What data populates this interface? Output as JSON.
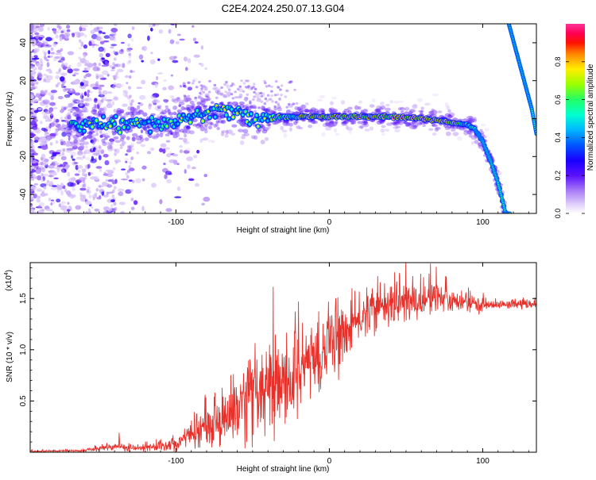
{
  "figure_title": "C2E4.2024.250.07.13.G04",
  "colors": {
    "snr_line": "#e8302a",
    "colormap": [
      "#ffffff",
      "#cfb6f2",
      "#7a28ff",
      "#2b00ff",
      "#0066ff",
      "#00ccff",
      "#00ffb0",
      "#33ff33",
      "#ccff00",
      "#ffdd00",
      "#ff6600",
      "#ff0000",
      "#ff3399"
    ]
  },
  "chart_data": [
    {
      "type": "heatmap",
      "title": "C2E4.2024.250.07.13.G04",
      "xlabel": "Height of straight line (km)",
      "ylabel": "Frequency (Hz)",
      "xlim": [
        -195,
        135
      ],
      "ylim": [
        -50,
        50
      ],
      "xticks": [
        -100,
        0,
        100
      ],
      "xtick_labels": [
        "-100",
        "0",
        "100"
      ],
      "yticks": [
        -40,
        -20,
        0,
        20,
        40
      ],
      "ytick_labels": [
        "-40",
        "-20",
        "0",
        "20",
        "40"
      ],
      "colorbar": {
        "label": "Normalized spectral amplitude",
        "range": [
          0,
          1
        ],
        "ticks": [
          0,
          0.2,
          0.4,
          0.6,
          0.8
        ],
        "tick_labels": [
          "0.0",
          "0.2",
          "0.4",
          "0.6",
          "0.8"
        ]
      },
      "ridge": {
        "x": [
          -165,
          -150,
          -130,
          -110,
          -100,
          -90,
          -80,
          -70,
          -60,
          -50,
          -45,
          -40,
          -35,
          -30,
          -20,
          0,
          20,
          40,
          60,
          80,
          90,
          95,
          100,
          105,
          110,
          115
        ],
        "y": [
          -3,
          -3,
          -3,
          -3,
          -2,
          1,
          3,
          4,
          3,
          0,
          -1,
          0,
          1,
          1,
          1,
          1,
          1,
          1,
          0,
          -2,
          -3,
          -6,
          -12,
          -22,
          -34,
          -50
        ]
      },
      "secondary_ridge": {
        "x": [
          117,
          122,
          127,
          132,
          135
        ],
        "y": [
          50,
          35,
          20,
          5,
          -8
        ]
      },
      "noise_region": {
        "x_range": [
          -195,
          -100
        ],
        "y_range": [
          -50,
          50
        ]
      }
    },
    {
      "type": "line",
      "xlabel": "Height of straight line (km)",
      "ylabel": "SNR (10 * v/v)",
      "y_multiplier_label": "(x10",
      "y_multiplier_exponent": "4",
      "xlim": [
        -195,
        135
      ],
      "ylim": [
        0,
        18500
      ],
      "xticks": [
        -100,
        0,
        100
      ],
      "xtick_labels": [
        "-100",
        "0",
        "100"
      ],
      "yticks": [
        5000,
        10000,
        15000
      ],
      "ytick_labels": [
        "0.5",
        "1.0",
        "1.5"
      ],
      "series": [
        {
          "name": "SNR",
          "envelope": {
            "x": [
              -195,
              -160,
              -140,
              -130,
              -120,
              -100,
              -90,
              -80,
              -70,
              -60,
              -50,
              -40,
              -30,
              -20,
              -10,
              0,
              10,
              20,
              30,
              40,
              50,
              60,
              70,
              80,
              90,
              100,
              110,
              120,
              135
            ],
            "mean": [
              100,
              150,
              600,
              400,
              400,
              900,
              1600,
              2500,
              3300,
              4200,
              5000,
              5500,
              6000,
              7500,
              9000,
              10300,
              11500,
              13000,
              14000,
              14500,
              14500,
              14800,
              15000,
              14700,
              14500,
              14400,
              14400,
              14400,
              14400
            ],
            "spread": [
              60,
              80,
              300,
              300,
              300,
              600,
              1000,
              1600,
              2200,
              2800,
              3200,
              3500,
              3800,
              3500,
              3000,
              2800,
              2300,
              1800,
              1700,
              1700,
              1700,
              1600,
              1400,
              1000,
              700,
              500,
              350,
              300,
              300
            ]
          },
          "peak_values": [
            {
              "x": -137,
              "y": 1900
            },
            {
              "x": -20,
              "y": 14700
            },
            {
              "x": 50,
              "y": 18800
            },
            {
              "x": 66,
              "y": 18400
            }
          ]
        }
      ]
    }
  ]
}
